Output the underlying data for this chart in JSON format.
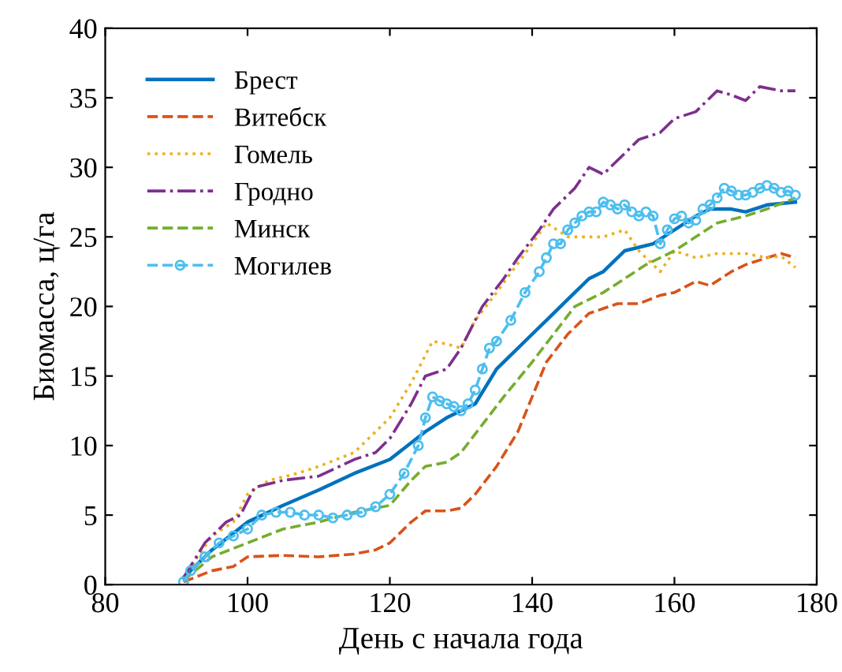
{
  "chart_data": {
    "type": "line",
    "xlabel": "День с начала года",
    "ylabel": "Биомасса, ц/га",
    "xlim": [
      80,
      180
    ],
    "xticks": [
      80,
      100,
      120,
      140,
      160,
      180
    ],
    "ylim": [
      0,
      40
    ],
    "yticks": [
      0,
      5,
      10,
      15,
      20,
      25,
      30,
      35,
      40
    ],
    "grid": false,
    "legend": "top left",
    "series": [
      {
        "name": "Брест",
        "color": "#0072bd",
        "line_style": "solid",
        "marker": "none",
        "x": [
          91,
          95,
          100,
          105,
          110,
          115,
          120,
          125,
          128,
          130,
          132,
          135,
          140,
          143,
          145,
          148,
          150,
          153,
          157,
          160,
          163,
          165,
          168,
          170,
          173,
          177
        ],
        "values": [
          0.5,
          2.5,
          4.5,
          5.7,
          6.8,
          8,
          9,
          11,
          12,
          12.5,
          13,
          15.5,
          18,
          19.5,
          20.5,
          22,
          22.5,
          24,
          24.5,
          25.5,
          26.5,
          27,
          27,
          26.8,
          27.3,
          27.5
        ]
      },
      {
        "name": "Витебск",
        "color": "#d95319",
        "line_style": "dashed",
        "marker": "none",
        "x": [
          91,
          95,
          98,
          100,
          105,
          110,
          115,
          118,
          120,
          123,
          125,
          128,
          130,
          132,
          135,
          138,
          140,
          142,
          145,
          148,
          152,
          155,
          158,
          160,
          163,
          165,
          168,
          170,
          173,
          175,
          177
        ],
        "values": [
          0.2,
          1,
          1.3,
          2,
          2.1,
          2,
          2.2,
          2.5,
          3,
          4.5,
          5.3,
          5.3,
          5.5,
          6.5,
          8.5,
          11,
          13.5,
          16,
          18,
          19.5,
          20.2,
          20.2,
          20.8,
          21,
          21.8,
          21.5,
          22.5,
          23,
          23.5,
          23.8,
          23.5
        ]
      },
      {
        "name": "Гомель",
        "color": "#edb120",
        "line_style": "dotted",
        "marker": "none",
        "x": [
          91,
          95,
          98,
          100,
          103,
          107,
          110,
          115,
          118,
          120,
          123,
          126,
          128,
          130,
          132,
          135,
          140,
          142,
          145,
          150,
          153,
          155,
          158,
          160,
          163,
          166,
          170,
          173,
          175,
          177
        ],
        "values": [
          0.5,
          3.5,
          4.5,
          6.5,
          7.5,
          8,
          8.5,
          9.5,
          11,
          12,
          14.5,
          17.5,
          17.3,
          17,
          19,
          21,
          24.5,
          26,
          25,
          25,
          25.5,
          24,
          22.5,
          24,
          23.5,
          23.8,
          23.8,
          23.5,
          23.6,
          22.8
        ]
      },
      {
        "name": "Гродно",
        "color": "#7e2f8e",
        "line_style": "dashdot",
        "marker": "none",
        "x": [
          91,
          94,
          97,
          99,
          101,
          105,
          110,
          115,
          118,
          120,
          123,
          125,
          128,
          130,
          133,
          136,
          138,
          141,
          143,
          146,
          148,
          150,
          152,
          155,
          158,
          160,
          163,
          166,
          168,
          170,
          172,
          175,
          177
        ],
        "values": [
          0.5,
          3,
          4.5,
          5,
          7,
          7.5,
          7.8,
          9,
          9.5,
          10.5,
          13,
          15,
          15.5,
          17,
          20,
          22,
          23.5,
          25.5,
          27,
          28.5,
          30,
          29.5,
          30.5,
          32,
          32.5,
          33.5,
          34,
          35.5,
          35.2,
          34.8,
          35.8,
          35.5,
          35.5
        ]
      },
      {
        "name": "Минск",
        "color": "#77ac30",
        "line_style": "dashed",
        "marker": "none",
        "x": [
          91,
          95,
          100,
          105,
          110,
          115,
          120,
          123,
          125,
          128,
          130,
          133,
          136,
          140,
          143,
          146,
          150,
          153,
          156,
          160,
          163,
          166,
          170,
          173,
          177
        ],
        "values": [
          0.3,
          2,
          3,
          4,
          4.5,
          5.2,
          5.7,
          7.5,
          8.5,
          8.8,
          9.5,
          11.5,
          13.5,
          16,
          18,
          20,
          21,
          22,
          23,
          24,
          25,
          26,
          26.5,
          27,
          27.8
        ]
      },
      {
        "name": "Могилев",
        "color": "#4dbeee",
        "line_style": "dashed",
        "marker": "circle",
        "x": [
          91,
          92,
          94,
          96,
          98,
          100,
          102,
          104,
          106,
          108,
          110,
          112,
          114,
          116,
          118,
          120,
          122,
          124,
          125,
          126,
          127,
          128,
          129,
          130,
          131,
          132,
          133,
          134,
          135,
          137,
          139,
          141,
          142,
          143,
          144,
          145,
          146,
          147,
          148,
          149,
          150,
          151,
          152,
          153,
          154,
          155,
          156,
          157,
          158,
          159,
          160,
          161,
          162,
          163,
          164,
          165,
          166,
          167,
          168,
          169,
          170,
          171,
          172,
          173,
          174,
          175,
          176,
          177
        ],
        "values": [
          0.2,
          1,
          2,
          3,
          3.5,
          4,
          5,
          5.2,
          5.2,
          5,
          5,
          4.8,
          5,
          5.2,
          5.6,
          6.5,
          8,
          10,
          12,
          13.5,
          13.2,
          13,
          12.8,
          12.5,
          13,
          14,
          15.5,
          17,
          17.5,
          19,
          21,
          22.5,
          23.5,
          24.5,
          24.5,
          25.5,
          26,
          26.5,
          26.8,
          26.8,
          27.5,
          27.3,
          27,
          27.3,
          26.8,
          26.5,
          26.8,
          26.5,
          24.5,
          25.5,
          26.3,
          26.5,
          26,
          26.2,
          27,
          27.3,
          27.8,
          28.5,
          28.3,
          28,
          28,
          28.2,
          28.5,
          28.7,
          28.5,
          28.2,
          28.3,
          28
        ]
      }
    ]
  }
}
